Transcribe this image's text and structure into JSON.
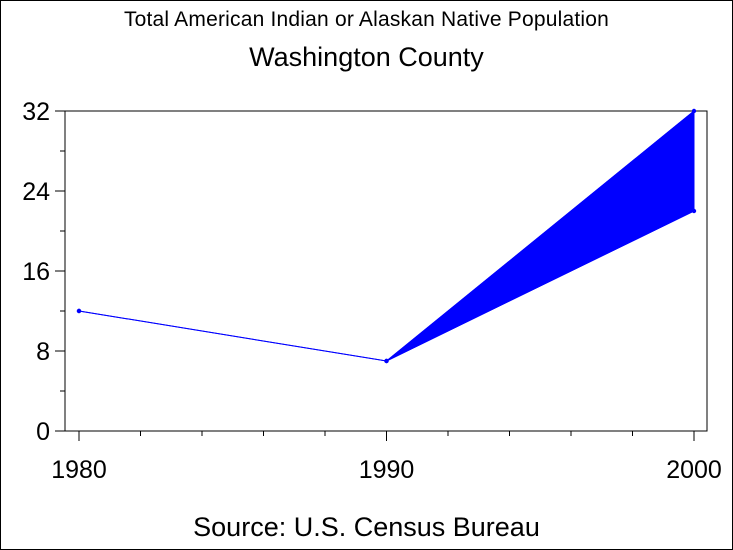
{
  "chart_data": {
    "type": "line",
    "title": "Total American Indian or Alaskan Native Population",
    "subtitle": "Washington County",
    "footnote": "Source: U.S. Census Bureau",
    "xlabel": "",
    "ylabel": "",
    "x_ticks": [
      "1980",
      "1990",
      "2000"
    ],
    "x_range": [
      1980,
      2000
    ],
    "y_ticks": [
      "0",
      "8",
      "16",
      "24",
      "32"
    ],
    "ylim": [
      0,
      32
    ],
    "grid": false,
    "series": [
      {
        "x": [
          1980,
          1990,
          2000
        ],
        "y": [
          12,
          7,
          32
        ]
      },
      {
        "x": [
          1980,
          1990,
          2000
        ],
        "y": [
          12,
          7,
          22
        ]
      }
    ],
    "band_fill_between_series": {
      "from_x": 1990,
      "to_x": 2000
    },
    "colors": {
      "line": "#0000ff",
      "band": "#0000ff",
      "axis": "#000000"
    }
  }
}
